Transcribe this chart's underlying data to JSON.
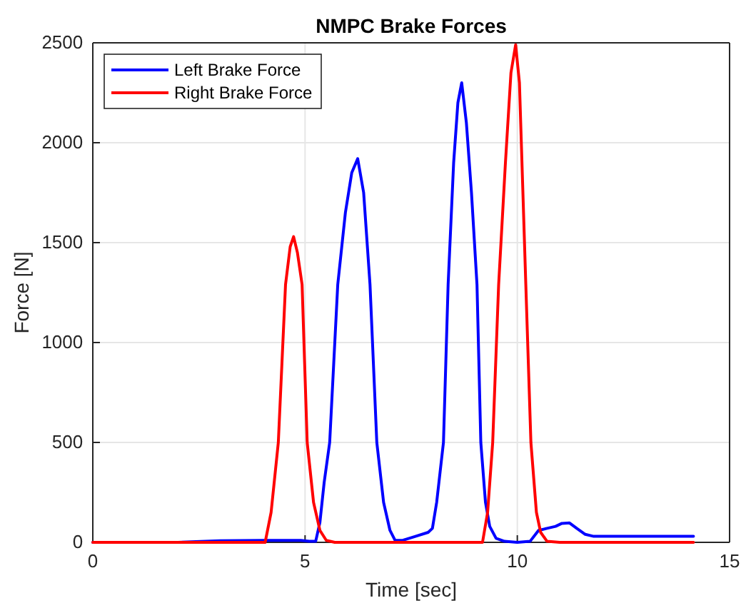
{
  "chart_data": {
    "type": "line",
    "title": "NMPC Brake Forces",
    "xlabel": "Time [sec]",
    "ylabel": "Force [N]",
    "xlim": [
      0,
      15
    ],
    "ylim": [
      0,
      2500
    ],
    "xticks": [
      0,
      5,
      10,
      15
    ],
    "yticks": [
      0,
      500,
      1000,
      1500,
      2000,
      2500
    ],
    "grid": true,
    "legend": "top left",
    "line_style": "solid",
    "marker": "none",
    "series": [
      {
        "name": "Left Brake Force",
        "color": "#0000ff",
        "x": [
          0,
          2,
          3,
          4,
          4.9,
          5.1,
          5.25,
          5.35,
          5.45,
          5.58,
          5.77,
          5.95,
          6.1,
          6.24,
          6.38,
          6.53,
          6.69,
          6.85,
          7.0,
          7.12,
          7.3,
          7.6,
          7.9,
          8.0,
          8.1,
          8.18,
          8.26,
          8.37,
          8.5,
          8.6,
          8.69,
          8.8,
          8.92,
          9.05,
          9.14,
          9.25,
          9.35,
          9.5,
          9.7,
          10.0,
          10.3,
          10.5,
          10.7,
          10.9,
          11.05,
          11.23,
          11.4,
          11.6,
          11.8,
          12.2,
          13,
          14.15
        ],
        "values": [
          0,
          0,
          8,
          10,
          10,
          5,
          5,
          100,
          300,
          500,
          1290,
          1650,
          1850,
          1920,
          1750,
          1290,
          500,
          200,
          60,
          10,
          10,
          30,
          50,
          70,
          200,
          350,
          500,
          1290,
          1900,
          2200,
          2300,
          2100,
          1750,
          1290,
          500,
          200,
          80,
          20,
          5,
          0,
          5,
          60,
          70,
          80,
          95,
          97,
          70,
          40,
          30,
          30,
          30,
          30
        ]
      },
      {
        "name": "Right Brake Force",
        "color": "#ff0000",
        "x": [
          0,
          4.0,
          4.06,
          4.2,
          4.37,
          4.54,
          4.65,
          4.73,
          4.82,
          4.93,
          5.05,
          5.2,
          5.35,
          5.5,
          5.7,
          6,
          9.1,
          9.18,
          9.3,
          9.42,
          9.56,
          9.72,
          9.85,
          9.96,
          10.05,
          10.2,
          10.32,
          10.45,
          10.55,
          10.7,
          11,
          14.15
        ],
        "values": [
          0,
          0,
          0,
          150,
          500,
          1290,
          1480,
          1530,
          1450,
          1290,
          500,
          200,
          60,
          10,
          0,
          0,
          0,
          0,
          150,
          500,
          1290,
          1900,
          2350,
          2490,
          2300,
          1290,
          500,
          150,
          50,
          5,
          0,
          0
        ]
      }
    ]
  }
}
